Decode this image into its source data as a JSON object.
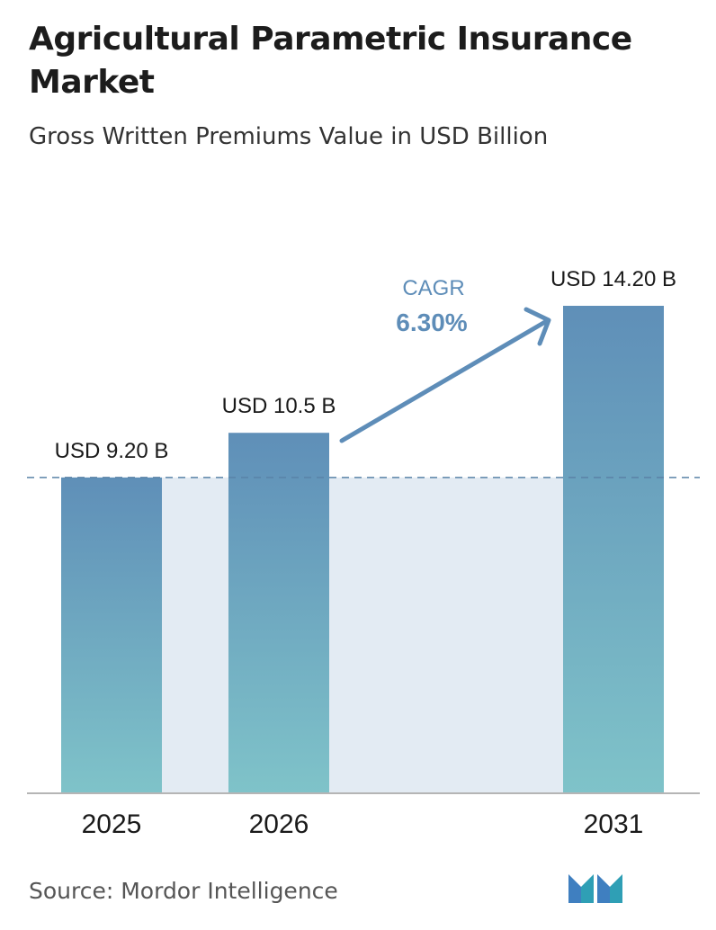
{
  "header": {
    "title": "Agricultural Parametric Insurance Market",
    "subtitle": "Gross Written Premiums Value in USD Billion"
  },
  "chart_data": {
    "type": "bar",
    "categories": [
      "2025",
      "2026",
      "2031"
    ],
    "values": [
      9.2,
      10.5,
      14.2
    ],
    "data_labels": [
      "USD 9.20 B",
      "USD 10.5 B",
      "USD 14.20 B"
    ],
    "title": "Agricultural Parametric Insurance Market",
    "subtitle": "Gross Written Premiums Value in USD Billion",
    "xlabel": "",
    "ylabel": "",
    "ylim": [
      0,
      14.2
    ],
    "grid": false,
    "reference_line": {
      "value": 9.2,
      "style": "dashed"
    },
    "annotation": {
      "label": "CAGR",
      "value": "6.30%",
      "from": "2026",
      "to": "2031"
    },
    "colors": {
      "bar_top": "#5f8fb8",
      "bar_bottom": "#7fc3c9",
      "shaded_area": "#e3ebf3",
      "annotation": "#5e8db8",
      "reference_line": "#5a83a8"
    }
  },
  "footer": {
    "source": "Source: Mordor Intelligence",
    "logo": "mordor-intelligence-logo"
  }
}
